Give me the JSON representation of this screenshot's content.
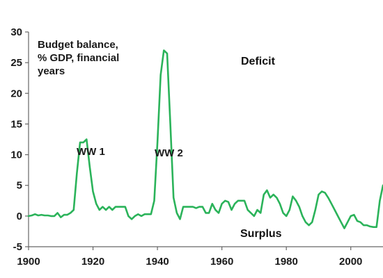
{
  "chart_data": {
    "type": "line",
    "title": "",
    "xlabel": "",
    "ylabel": "",
    "xlim": [
      1900,
      2010
    ],
    "ylim": [
      -5,
      30
    ],
    "x_ticks": [
      "1900",
      "1920",
      "1940",
      "1960",
      "1980",
      "2000"
    ],
    "y_ticks": [
      "-5",
      "0",
      "5",
      "10",
      "15",
      "20",
      "25",
      "30"
    ],
    "grid": false,
    "legend": "none",
    "line_color": "#2bb35a",
    "annotations": {
      "legend_note": [
        "Budget balance,",
        "% GDP, financial",
        "years"
      ],
      "deficit": "Deficit",
      "surplus": "Surplus",
      "ww1": "WW 1",
      "ww2": "WW 2"
    },
    "series": [
      {
        "x": [
          1900,
          1901,
          1902,
          1903,
          1904,
          1905,
          1906,
          1907,
          1908,
          1909,
          1910,
          1911,
          1912,
          1913,
          1914,
          1915,
          1916,
          1917,
          1918,
          1919,
          1920,
          1921,
          1922,
          1923,
          1924,
          1925,
          1926,
          1927,
          1928,
          1929,
          1930,
          1931,
          1932,
          1933,
          1934,
          1935,
          1936,
          1937,
          1938,
          1939,
          1940,
          1941,
          1942,
          1943,
          1944,
          1945,
          1946,
          1947,
          1948,
          1949,
          1950,
          1951,
          1952,
          1953,
          1954,
          1955,
          1956,
          1957,
          1958,
          1959,
          1960,
          1961,
          1962,
          1963,
          1964,
          1965,
          1966,
          1967,
          1968,
          1969,
          1970,
          1971,
          1972,
          1973,
          1974,
          1975,
          1976,
          1977,
          1978,
          1979,
          1980,
          1981,
          1982,
          1983,
          1984,
          1985,
          1986,
          1987,
          1988,
          1989,
          1990,
          1991,
          1992,
          1993,
          1994,
          1995,
          1996,
          1997,
          1998,
          1999,
          2000,
          2001,
          2002,
          2003,
          2004,
          2005,
          2006,
          2007,
          2008,
          2009,
          2010
        ],
        "values": [
          0,
          0.1,
          0.3,
          0.1,
          0.2,
          0.1,
          0.1,
          0,
          0,
          0.5,
          -0.2,
          0.2,
          0.2,
          0.5,
          1,
          7,
          12,
          12,
          12.5,
          8,
          4,
          2,
          1,
          1.5,
          1,
          1.5,
          1,
          1.5,
          1.5,
          1.5,
          1.5,
          0,
          -0.5,
          0,
          0.3,
          0,
          0.3,
          0.3,
          0.3,
          2.5,
          12,
          23,
          27,
          26.5,
          15,
          3,
          0.5,
          -0.5,
          1.5,
          1.5,
          1.5,
          1.5,
          1.3,
          1.5,
          1.5,
          0.5,
          0.5,
          2,
          1,
          0.5,
          2,
          2.5,
          2.3,
          1,
          2,
          2.5,
          2.5,
          2.5,
          1,
          0.5,
          0,
          1,
          0.5,
          3.5,
          4.2,
          3,
          3.5,
          3,
          2,
          0.5,
          0,
          1,
          3.2,
          2.5,
          1.5,
          0,
          -1,
          -1.5,
          -1,
          1,
          3.5,
          4,
          3.8,
          3,
          2,
          1,
          0,
          -1,
          -2,
          -1,
          0,
          0.2,
          -0.8,
          -1,
          -1.5,
          -1.5,
          -1.7,
          -1.8,
          -1.8,
          2.5,
          5
        ]
      }
    ]
  }
}
